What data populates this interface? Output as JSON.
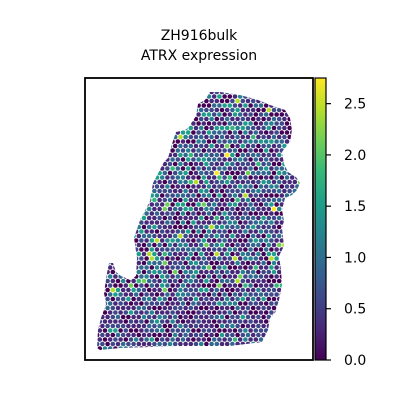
{
  "chart_data": {
    "type": "scatter",
    "title_lines": [
      "ZH916bulk",
      "ATRX expression"
    ],
    "xlabel": "",
    "ylabel": "",
    "colorbar": {
      "colormap": "viridis",
      "range": [
        0.0,
        2.75
      ],
      "ticks": [
        0.0,
        0.5,
        1.0,
        1.5,
        2.0,
        2.5
      ],
      "tick_labels": [
        "0.0",
        "0.5",
        "1.0",
        "1.5",
        "2.0",
        "2.5"
      ],
      "position": "right"
    },
    "grid": false,
    "legend": "none",
    "point_summary": "spatial spot expression values, mostly 0.0–1.0, with scattered high values up to about 2.6"
  },
  "colors": {
    "viridis": [
      "#440154",
      "#482878",
      "#3e4989",
      "#31688e",
      "#26828e",
      "#1f9e89",
      "#35b779",
      "#6ece58",
      "#b5de2b",
      "#fde725"
    ],
    "axes": "#000000",
    "background": "#ffffff"
  }
}
